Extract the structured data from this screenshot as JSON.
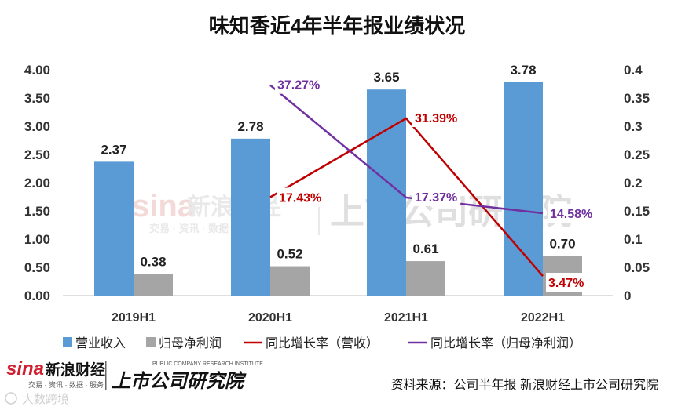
{
  "chart_data": {
    "type": "bar",
    "title": "味知香近4年半年报业绩状况",
    "categories": [
      "2019H1",
      "2020H1",
      "2021H1",
      "2022H1"
    ],
    "series": [
      {
        "name": "营业收入",
        "kind": "bar",
        "axis": "left",
        "color": "#5B9BD5",
        "values": [
          2.37,
          2.78,
          3.65,
          3.78
        ],
        "labels": [
          "2.37",
          "2.78",
          "3.65",
          "3.78"
        ]
      },
      {
        "name": "归母净利润",
        "kind": "bar",
        "axis": "left",
        "color": "#A5A5A5",
        "values": [
          0.38,
          0.52,
          0.61,
          0.7
        ],
        "labels": [
          "0.38",
          "0.52",
          "0.61",
          "0.70"
        ]
      },
      {
        "name": "同比增长率（营收）",
        "kind": "line",
        "axis": "right",
        "color": "#C00000",
        "values": [
          null,
          0.1743,
          0.3139,
          0.0347
        ],
        "labels": [
          "",
          "17.43%",
          "31.39%",
          "3.47%"
        ]
      },
      {
        "name": "同比增长率（归母净利润）",
        "kind": "line",
        "axis": "right",
        "color": "#7030A0",
        "values": [
          null,
          0.3727,
          0.1737,
          0.1458
        ],
        "labels": [
          "",
          "37.27%",
          "17.37%",
          "14.58%"
        ]
      }
    ],
    "y_left": {
      "min": 0,
      "max": 4,
      "ticks": [
        "0.00",
        "0.50",
        "1.00",
        "1.50",
        "2.00",
        "2.50",
        "3.00",
        "3.50",
        "4.00"
      ]
    },
    "y_right": {
      "min": 0,
      "max": 0.4,
      "ticks": [
        "0",
        "0.05",
        "0.1",
        "0.15",
        "0.2",
        "0.25",
        "0.3",
        "0.35",
        "0.4"
      ]
    },
    "grid": false,
    "legend": "bottom"
  },
  "source": "资料来源：公司半年报 新浪财经上市公司研究院",
  "branding": {
    "sina_logo": "sina",
    "sina_name": "新浪财经",
    "sina_sub": "交易 · 资讯 · 数据 · 服务",
    "institute": "上市公司研究院",
    "institute_en": "PUBLIC COMPANY RESEARCH INSTITUTE",
    "bottom_watermark": "大数跨境"
  }
}
